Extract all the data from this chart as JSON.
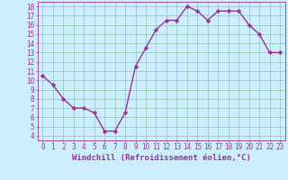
{
  "x": [
    0,
    1,
    2,
    3,
    4,
    5,
    6,
    7,
    8,
    9,
    10,
    11,
    12,
    13,
    14,
    15,
    16,
    17,
    18,
    19,
    20,
    21,
    22,
    23
  ],
  "y": [
    10.5,
    9.5,
    8.0,
    7.0,
    7.0,
    6.5,
    4.5,
    4.5,
    6.5,
    11.5,
    13.5,
    15.5,
    16.5,
    16.5,
    18.0,
    17.5,
    16.5,
    17.5,
    17.5,
    17.5,
    16.0,
    15.0,
    13.0,
    13.0
  ],
  "line_color": "#993399",
  "marker": "D",
  "markersize": 2.2,
  "linewidth": 1.0,
  "xlabel": "Windchill (Refroidissement éolien,°C)",
  "xlabel_fontsize": 6.5,
  "ylabel_ticks": [
    4,
    5,
    6,
    7,
    8,
    9,
    10,
    11,
    12,
    13,
    14,
    15,
    16,
    17,
    18
  ],
  "xlim": [
    -0.5,
    23.5
  ],
  "ylim": [
    3.5,
    18.5
  ],
  "bg_color": "#cceeff",
  "grid_color": "#aaddcc",
  "tick_color": "#993399",
  "tick_fontsize": 5.5,
  "xtick_labels": [
    "0",
    "1",
    "2",
    "3",
    "4",
    "5",
    "6",
    "7",
    "8",
    "9",
    "10",
    "11",
    "12",
    "13",
    "14",
    "15",
    "16",
    "17",
    "18",
    "19",
    "20",
    "21",
    "22",
    "23"
  ]
}
